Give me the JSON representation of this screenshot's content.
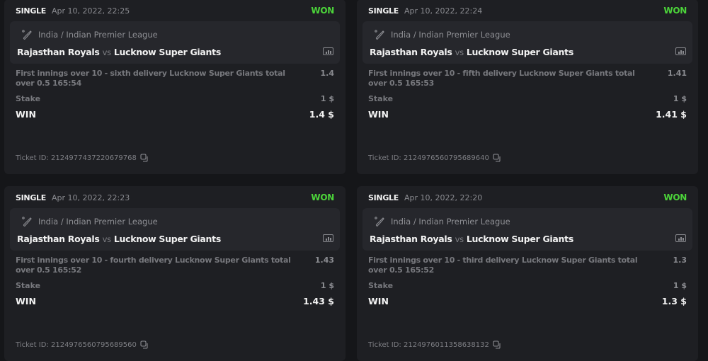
{
  "accent": {
    "won": "#4cd43a",
    "card": "#1e1f23",
    "event": "#26272c"
  },
  "labels": {
    "vs": "vs",
    "stake": "Stake",
    "win": "WIN",
    "ticket_prefix": "Ticket ID:"
  },
  "bets": [
    {
      "type": "SINGLE",
      "date": "Apr 10, 2022, 22:25",
      "status": "WON",
      "league": "India / Indian Premier League",
      "home": "Rajasthan Royals",
      "away": "Lucknow Super Giants",
      "market": "First innings over 10 - sixth delivery Lucknow Super Giants total over 0.5  165:54",
      "odds": "1.4",
      "stake": "1 $",
      "win": "1.4 $",
      "ticket_id": "2124977437220679768"
    },
    {
      "type": "SINGLE",
      "date": "Apr 10, 2022, 22:24",
      "status": "WON",
      "league": "India / Indian Premier League",
      "home": "Rajasthan Royals",
      "away": "Lucknow Super Giants",
      "market": "First innings over 10 - fifth delivery Lucknow Super Giants total over 0.5  165:53",
      "odds": "1.41",
      "stake": "1 $",
      "win": "1.41 $",
      "ticket_id": "2124976560795689640"
    },
    {
      "type": "SINGLE",
      "date": "Apr 10, 2022, 22:23",
      "status": "WON",
      "league": "India / Indian Premier League",
      "home": "Rajasthan Royals",
      "away": "Lucknow Super Giants",
      "market": "First innings over 10 - fourth delivery Lucknow Super Giants total over 0.5  165:52",
      "odds": "1.43",
      "stake": "1 $",
      "win": "1.43 $",
      "ticket_id": "2124976560795689560"
    },
    {
      "type": "SINGLE",
      "date": "Apr 10, 2022, 22:20",
      "status": "WON",
      "league": "India / Indian Premier League",
      "home": "Rajasthan Royals",
      "away": "Lucknow Super Giants",
      "market": "First innings over 10 - third delivery Lucknow Super Giants total over 0.5  165:52",
      "odds": "1.3",
      "stake": "1 $",
      "win": "1.3 $",
      "ticket_id": "2124976011358638132"
    }
  ]
}
